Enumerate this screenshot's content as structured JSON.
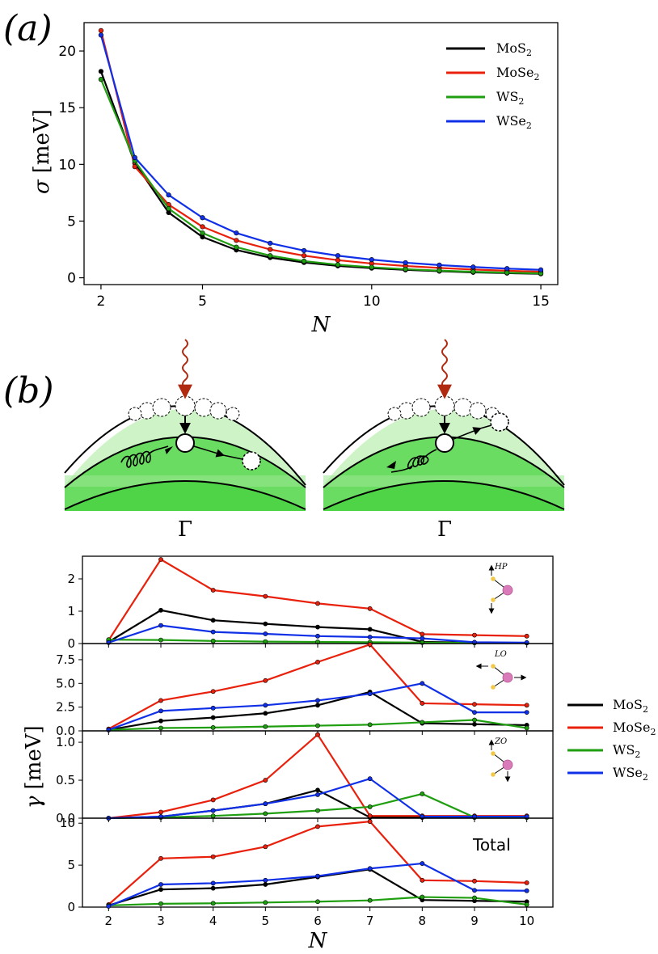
{
  "panel_labels": {
    "a": "(a)",
    "b": "(b)"
  },
  "schematic": {
    "gamma_label": "Γ"
  },
  "colors": {
    "MoS2": "#000000",
    "MoSe2": "#e8200c",
    "WS2": "#1f9e10",
    "WSe2": "#1030e8",
    "photon": "#b02a10",
    "band_light": "#cdf3c6",
    "band_mid": "#9de894",
    "band_dark": "#6bdc62"
  },
  "chart_data": [
    {
      "id": "sigma",
      "type": "line",
      "xlabel": "N",
      "ylabel_symbol": "σ",
      "ylabel_unit": "[meV]",
      "xlim": [
        1.5,
        15.5
      ],
      "ylim": [
        -0.6,
        22.5
      ],
      "xticks": [
        "2",
        "5",
        "10",
        "15"
      ],
      "xtick_values": [
        2,
        5,
        10,
        15
      ],
      "yticks": [
        "0",
        "5",
        "10",
        "15",
        "20"
      ],
      "ytick_values": [
        0,
        5,
        10,
        15,
        20
      ],
      "x": [
        2,
        3,
        4,
        5,
        6,
        7,
        8,
        9,
        10,
        11,
        12,
        13,
        14,
        15
      ],
      "legend": [
        {
          "base": "MoS",
          "sub": "2",
          "key": "MoS2"
        },
        {
          "base": "MoSe",
          "sub": "2",
          "key": "MoSe2"
        },
        {
          "base": "WS",
          "sub": "2",
          "key": "WS2"
        },
        {
          "base": "WSe",
          "sub": "2",
          "key": "WSe2"
        }
      ],
      "series": [
        {
          "name": "MoS2",
          "values": [
            18.2,
            10.1,
            5.75,
            3.6,
            2.45,
            1.78,
            1.35,
            1.05,
            0.85,
            0.7,
            0.58,
            0.48,
            0.41,
            0.35
          ]
        },
        {
          "name": "MoSe2",
          "values": [
            21.8,
            9.8,
            6.45,
            4.5,
            3.3,
            2.5,
            1.95,
            1.55,
            1.26,
            1.04,
            0.87,
            0.73,
            0.62,
            0.53
          ]
        },
        {
          "name": "WS2",
          "values": [
            17.5,
            10.3,
            6.1,
            3.95,
            2.7,
            1.95,
            1.47,
            1.15,
            0.93,
            0.76,
            0.63,
            0.53,
            0.45,
            0.39
          ]
        },
        {
          "name": "WSe2",
          "values": [
            21.4,
            10.6,
            7.3,
            5.3,
            3.95,
            3.05,
            2.4,
            1.95,
            1.6,
            1.33,
            1.12,
            0.95,
            0.81,
            0.7
          ]
        }
      ]
    },
    {
      "id": "gamma_HP",
      "type": "line",
      "inset_label": "HP",
      "xlim": [
        1.5,
        10.5
      ],
      "ylim": [
        0,
        2.7
      ],
      "yticks": [
        "0",
        "1",
        "2"
      ],
      "ytick_values": [
        0,
        1,
        2
      ],
      "x": [
        2,
        3,
        4,
        5,
        6,
        7,
        8,
        9,
        10
      ],
      "series": [
        {
          "name": "MoS2",
          "values": [
            0.05,
            1.03,
            0.72,
            0.61,
            0.51,
            0.44,
            0.05,
            0.03,
            0.02
          ]
        },
        {
          "name": "MoSe2",
          "values": [
            0.1,
            2.6,
            1.65,
            1.46,
            1.24,
            1.08,
            0.29,
            0.26,
            0.23
          ]
        },
        {
          "name": "WS2",
          "values": [
            0.12,
            0.11,
            0.08,
            0.06,
            0.05,
            0.04,
            0.03,
            0.02,
            0.02
          ]
        },
        {
          "name": "WSe2",
          "values": [
            0.03,
            0.56,
            0.36,
            0.3,
            0.23,
            0.2,
            0.16,
            0.04,
            0.03
          ]
        }
      ]
    },
    {
      "id": "gamma_LO",
      "type": "line",
      "inset_label": "LO",
      "xlim": [
        1.5,
        10.5
      ],
      "ylim": [
        0,
        9.2
      ],
      "yticks": [
        "0.0",
        "2.5",
        "5.0",
        "7.5"
      ],
      "ytick_values": [
        0,
        2.5,
        5,
        7.5
      ],
      "x": [
        2,
        3,
        4,
        5,
        6,
        7,
        8,
        9,
        10
      ],
      "series": [
        {
          "name": "MoS2",
          "values": [
            0.1,
            1.05,
            1.4,
            1.85,
            2.7,
            4.1,
            0.8,
            0.7,
            0.6
          ]
        },
        {
          "name": "MoSe2",
          "values": [
            0.2,
            3.2,
            4.15,
            5.3,
            7.25,
            9.1,
            2.9,
            2.8,
            2.7
          ]
        },
        {
          "name": "WS2",
          "values": [
            0.1,
            0.3,
            0.35,
            0.45,
            0.55,
            0.65,
            0.9,
            1.15,
            0.3
          ]
        },
        {
          "name": "WSe2",
          "values": [
            0.1,
            2.1,
            2.4,
            2.7,
            3.2,
            3.9,
            5.0,
            1.95,
            1.95
          ]
        }
      ]
    },
    {
      "id": "gamma_ZO",
      "type": "line",
      "inset_label": "ZO",
      "xlim": [
        1.5,
        10.5
      ],
      "ylim": [
        0,
        1.15
      ],
      "yticks": [
        "0.0",
        "0.5",
        "1.0"
      ],
      "ytick_values": [
        0,
        0.5,
        1.0
      ],
      "x": [
        2,
        3,
        4,
        5,
        6,
        7,
        8,
        9,
        10
      ],
      "series": [
        {
          "name": "MoS2",
          "values": [
            0.0,
            0.02,
            0.1,
            0.19,
            0.37,
            0.01,
            0.01,
            0.01,
            0.01
          ]
        },
        {
          "name": "MoSe2",
          "values": [
            0.0,
            0.08,
            0.24,
            0.5,
            1.1,
            0.03,
            0.03,
            0.03,
            0.03
          ]
        },
        {
          "name": "WS2",
          "values": [
            0.0,
            0.01,
            0.03,
            0.06,
            0.1,
            0.15,
            0.32,
            0.01,
            0.01
          ]
        },
        {
          "name": "WSe2",
          "values": [
            0.0,
            0.02,
            0.1,
            0.19,
            0.31,
            0.52,
            0.02,
            0.02,
            0.02
          ]
        }
      ]
    },
    {
      "id": "gamma_total",
      "type": "line",
      "inset_label": "Total",
      "xlabel": "N",
      "ylabel_symbol": "γ",
      "ylabel_unit": "[meV]",
      "xlim": [
        1.5,
        10.5
      ],
      "ylim": [
        0,
        10.6
      ],
      "xticks": [
        "2",
        "3",
        "4",
        "5",
        "6",
        "7",
        "8",
        "9",
        "10"
      ],
      "xtick_values": [
        2,
        3,
        4,
        5,
        6,
        7,
        8,
        9,
        10
      ],
      "yticks": [
        "0",
        "5",
        "10"
      ],
      "ytick_values": [
        0,
        5,
        10
      ],
      "x": [
        2,
        3,
        4,
        5,
        6,
        7,
        8,
        9,
        10
      ],
      "legend": [
        {
          "base": "MoS",
          "sub": "2",
          "key": "MoS2"
        },
        {
          "base": "MoSe",
          "sub": "2",
          "key": "MoSe2"
        },
        {
          "base": "WS",
          "sub": "2",
          "key": "WS2"
        },
        {
          "base": "WSe",
          "sub": "2",
          "key": "WSe2"
        }
      ],
      "series": [
        {
          "name": "MoS2",
          "values": [
            0.2,
            2.1,
            2.25,
            2.7,
            3.6,
            4.5,
            0.85,
            0.75,
            0.65
          ]
        },
        {
          "name": "MoSe2",
          "values": [
            0.3,
            5.8,
            6.0,
            7.2,
            9.6,
            10.2,
            3.2,
            3.1,
            2.9
          ]
        },
        {
          "name": "WS2",
          "values": [
            0.2,
            0.4,
            0.45,
            0.55,
            0.65,
            0.8,
            1.2,
            1.1,
            0.3
          ]
        },
        {
          "name": "WSe2",
          "values": [
            0.1,
            2.7,
            2.85,
            3.2,
            3.7,
            4.6,
            5.2,
            2.0,
            1.95
          ]
        }
      ]
    }
  ]
}
